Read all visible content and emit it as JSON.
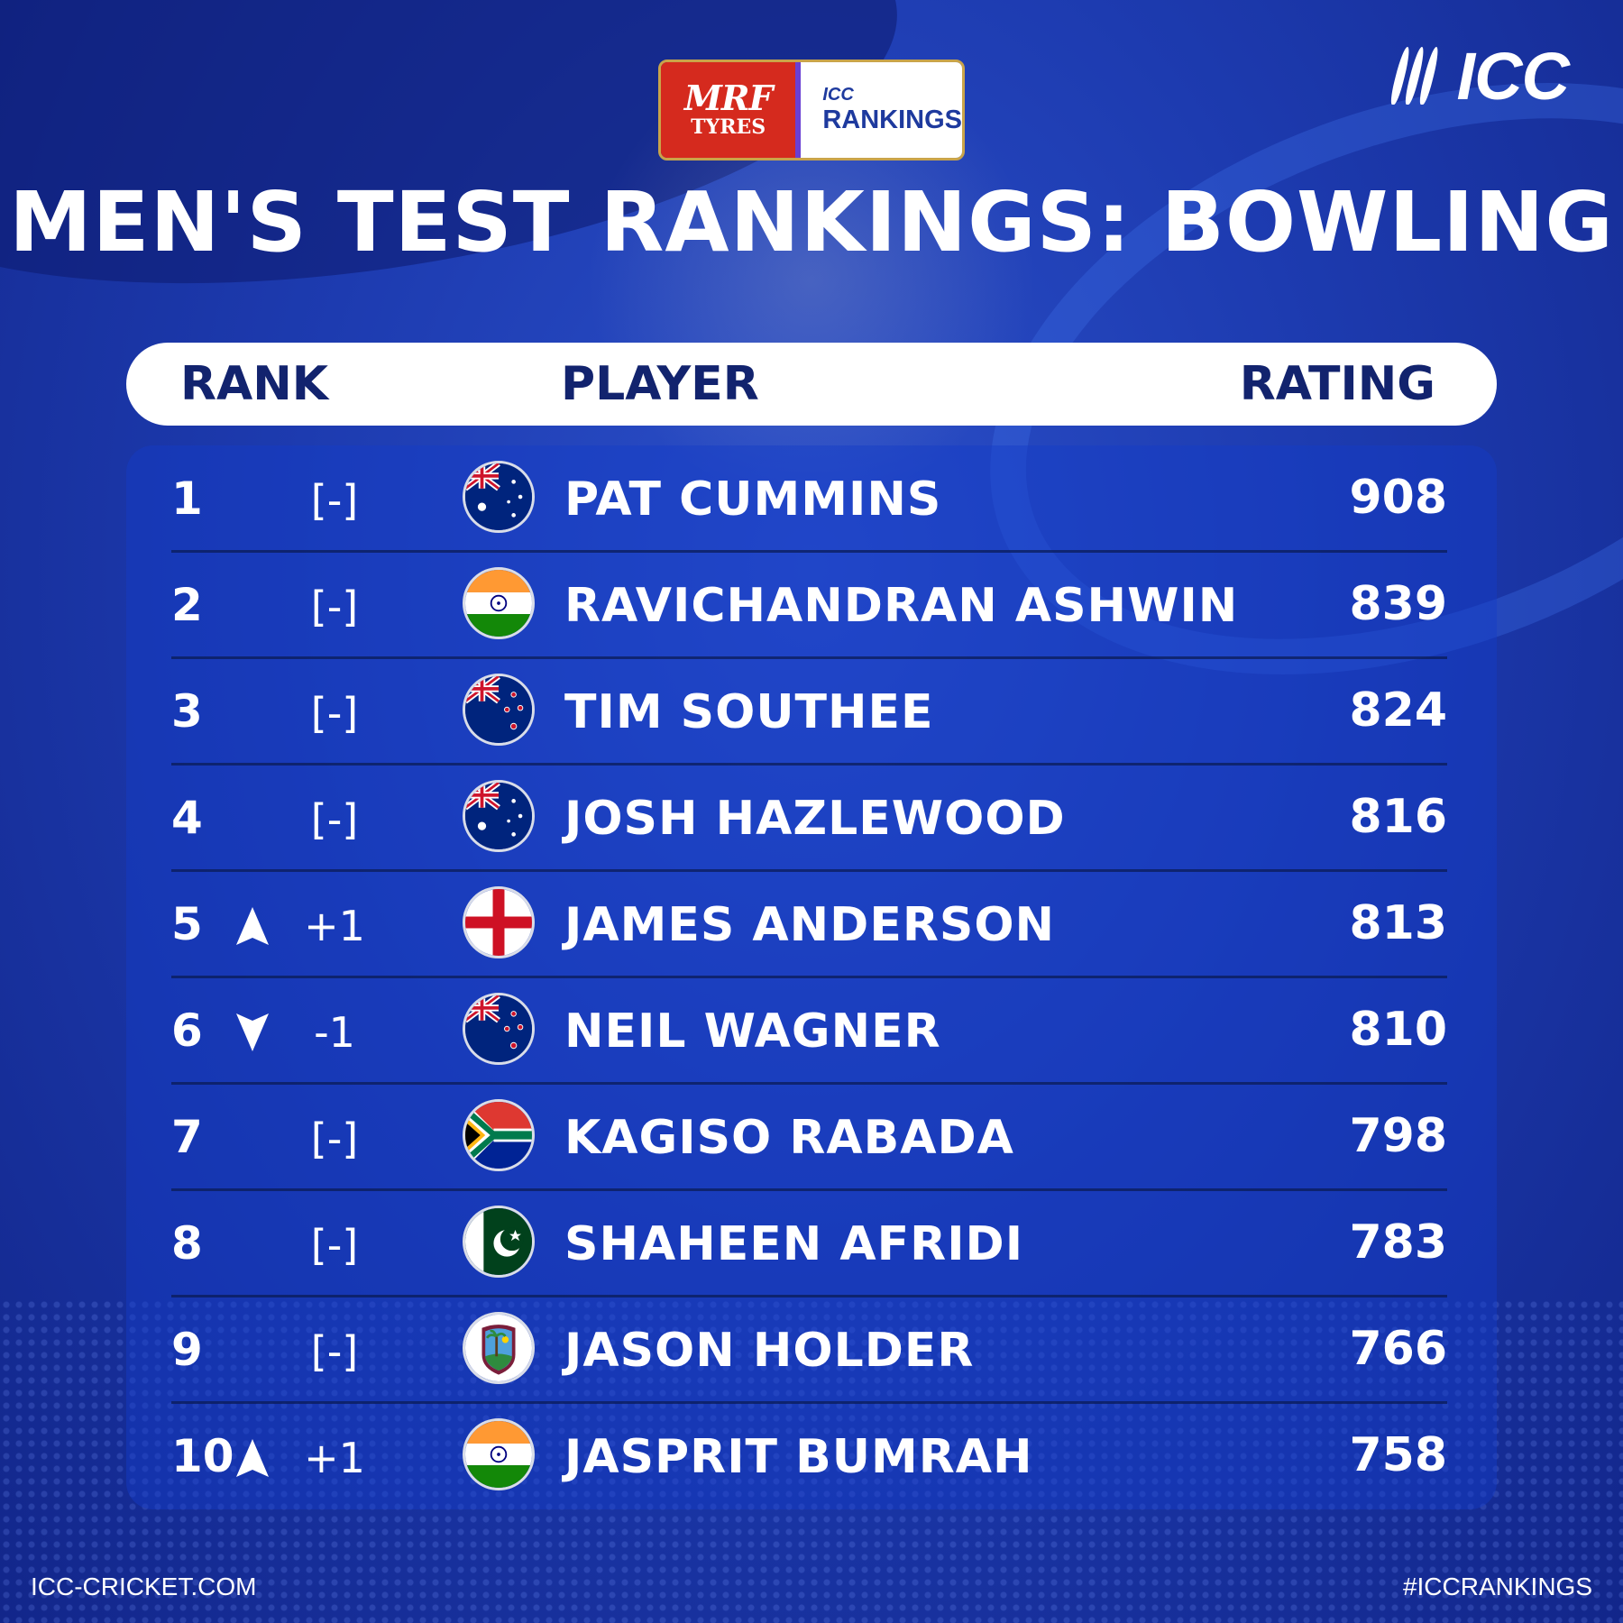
{
  "sponsor": {
    "mrf_line1": "MRF",
    "mrf_line2": "TYRES",
    "badge_icc": "ICC",
    "badge_rankings": "RANKINGS"
  },
  "brand": {
    "logo_text": "ICC"
  },
  "title": "MEN'S TEST RANKINGS: BOWLING",
  "header": {
    "rank": "RANK",
    "player": "PLAYER",
    "rating": "RATING"
  },
  "rows": [
    {
      "rank": "1",
      "change": "[-]",
      "movement": "none",
      "flag": "australia",
      "player": "PAT CUMMINS",
      "rating": "908"
    },
    {
      "rank": "2",
      "change": "[-]",
      "movement": "none",
      "flag": "india",
      "player": "RAVICHANDRAN ASHWIN",
      "rating": "839"
    },
    {
      "rank": "3",
      "change": "[-]",
      "movement": "none",
      "flag": "new-zealand",
      "player": "TIM SOUTHEE",
      "rating": "824"
    },
    {
      "rank": "4",
      "change": "[-]",
      "movement": "none",
      "flag": "australia",
      "player": "JOSH HAZLEWOOD",
      "rating": "816"
    },
    {
      "rank": "5",
      "change": "+1",
      "movement": "up",
      "flag": "england",
      "player": "JAMES ANDERSON",
      "rating": "813"
    },
    {
      "rank": "6",
      "change": "-1",
      "movement": "down",
      "flag": "new-zealand",
      "player": "NEIL WAGNER",
      "rating": "810"
    },
    {
      "rank": "7",
      "change": "[-]",
      "movement": "none",
      "flag": "south-africa",
      "player": "KAGISO RABADA",
      "rating": "798"
    },
    {
      "rank": "8",
      "change": "[-]",
      "movement": "none",
      "flag": "pakistan",
      "player": "SHAHEEN AFRIDI",
      "rating": "783"
    },
    {
      "rank": "9",
      "change": "[-]",
      "movement": "none",
      "flag": "west-indies",
      "player": "JASON HOLDER",
      "rating": "766"
    },
    {
      "rank": "10",
      "change": "+1",
      "movement": "up",
      "flag": "india",
      "player": "JASPRIT BUMRAH",
      "rating": "758"
    }
  ],
  "footer": {
    "website": "ICC-CRICKET.COM",
    "hashtag": "#ICCRANKINGS"
  },
  "colors": {
    "background": "#1d3bb0",
    "header_text": "#12236e",
    "text": "#ffffff"
  }
}
